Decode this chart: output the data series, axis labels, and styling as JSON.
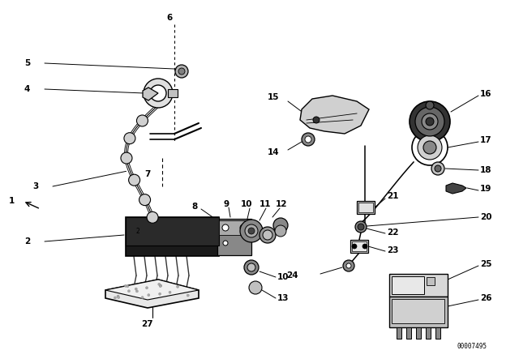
{
  "bg_color": "#ffffff",
  "part_number": "00007495",
  "lc": "#000000",
  "lw": 0.9,
  "figsize": [
    6.4,
    4.48
  ],
  "dpi": 100
}
